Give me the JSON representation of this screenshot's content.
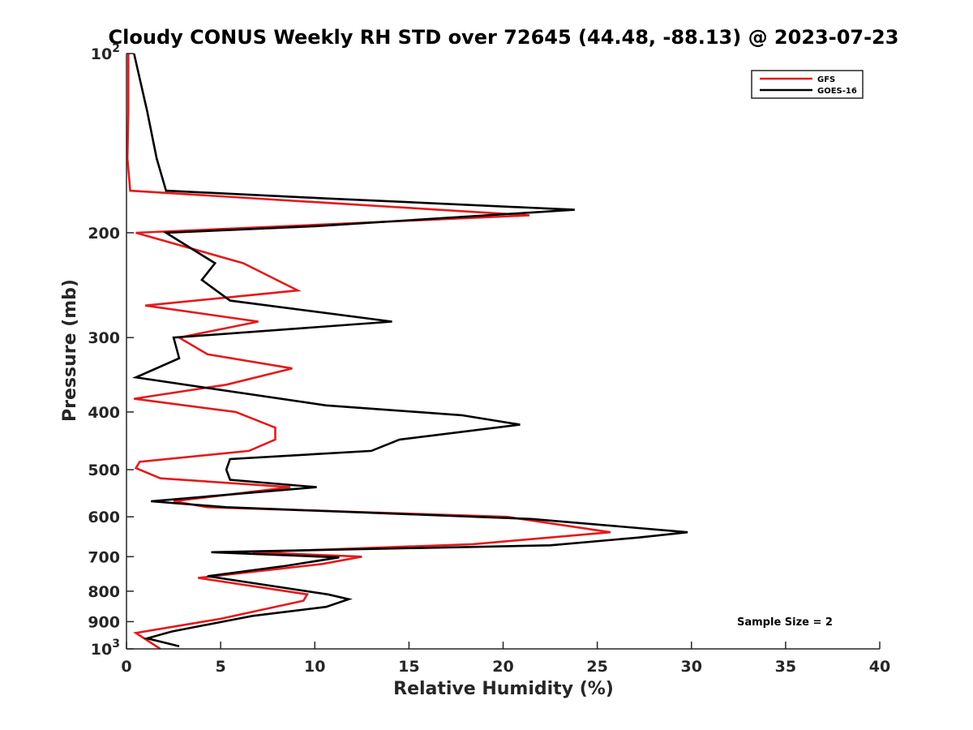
{
  "chart_data": {
    "type": "line",
    "title": "Cloudy CONUS Weekly RH STD over 72645 (44.48, -88.13) @ 2023-07-23",
    "xlabel": "Relative Humidity (%)",
    "ylabel": "Pressure (mb)",
    "xlim": [
      0,
      40
    ],
    "ylim": [
      100,
      1000
    ],
    "yscale": "log",
    "y_reversed": true,
    "grid": false,
    "legend_position": "top-right",
    "x_ticks": [
      {
        "value": 0,
        "label": "0"
      },
      {
        "value": 5,
        "label": "5"
      },
      {
        "value": 10,
        "label": "10"
      },
      {
        "value": 15,
        "label": "15"
      },
      {
        "value": 20,
        "label": "20"
      },
      {
        "value": 25,
        "label": "25"
      },
      {
        "value": 30,
        "label": "30"
      },
      {
        "value": 35,
        "label": "35"
      },
      {
        "value": 40,
        "label": "40"
      }
    ],
    "y_ticks": [
      {
        "value": 200,
        "label": "200"
      },
      {
        "value": 300,
        "label": "300"
      },
      {
        "value": 400,
        "label": "400"
      },
      {
        "value": 500,
        "label": "500"
      },
      {
        "value": 600,
        "label": "600"
      },
      {
        "value": 700,
        "label": "700"
      },
      {
        "value": 800,
        "label": "800"
      },
      {
        "value": 900,
        "label": "900"
      }
    ],
    "y_ticks_sci": [
      {
        "value": 100,
        "base": "10",
        "exp": "2"
      },
      {
        "value": 1000,
        "base": "10",
        "exp": "3"
      }
    ],
    "series": [
      {
        "name": "GFS",
        "color": "#e41a1c",
        "points": [
          [
            0.1,
            100
          ],
          [
            0.1,
            125
          ],
          [
            0.05,
            150
          ],
          [
            0.2,
            170
          ],
          [
            21.4,
            187
          ],
          [
            0.5,
            200
          ],
          [
            6.2,
            225
          ],
          [
            9.1,
            250
          ],
          [
            1.0,
            265
          ],
          [
            7.0,
            282
          ],
          [
            2.8,
            300
          ],
          [
            4.3,
            320
          ],
          [
            8.8,
            338
          ],
          [
            5.3,
            360
          ],
          [
            0.4,
            380
          ],
          [
            5.8,
            400
          ],
          [
            7.9,
            425
          ],
          [
            7.9,
            445
          ],
          [
            6.5,
            465
          ],
          [
            0.7,
            485
          ],
          [
            0.5,
            497
          ],
          [
            1.8,
            517
          ],
          [
            8.7,
            535
          ],
          [
            2.5,
            565
          ],
          [
            4.3,
            578
          ],
          [
            20.2,
            600
          ],
          [
            25.7,
            637
          ],
          [
            18.4,
            667
          ],
          [
            6.7,
            688
          ],
          [
            12.5,
            700
          ],
          [
            10.4,
            720
          ],
          [
            3.8,
            760
          ],
          [
            9.6,
            810
          ],
          [
            9.4,
            830
          ],
          [
            5.0,
            890
          ],
          [
            0.5,
            940
          ],
          [
            1.8,
            1000
          ]
        ]
      },
      {
        "name": "GOES-16",
        "color": "#000000",
        "points": [
          [
            0.4,
            100
          ],
          [
            1.1,
            125
          ],
          [
            1.6,
            150
          ],
          [
            2.1,
            170
          ],
          [
            10.4,
            175
          ],
          [
            23.8,
            183
          ],
          [
            10.0,
            195
          ],
          [
            2.1,
            200
          ],
          [
            4.7,
            225
          ],
          [
            4.0,
            240
          ],
          [
            5.5,
            260
          ],
          [
            14.1,
            282
          ],
          [
            2.5,
            300
          ],
          [
            2.8,
            325
          ],
          [
            0.5,
            350
          ],
          [
            10.6,
            390
          ],
          [
            17.8,
            405
          ],
          [
            20.9,
            420
          ],
          [
            14.5,
            445
          ],
          [
            13.0,
            465
          ],
          [
            5.5,
            480
          ],
          [
            5.3,
            500
          ],
          [
            5.5,
            520
          ],
          [
            10.1,
            535
          ],
          [
            1.3,
            565
          ],
          [
            5.3,
            578
          ],
          [
            21.5,
            605
          ],
          [
            29.8,
            637
          ],
          [
            27.2,
            650
          ],
          [
            22.5,
            670
          ],
          [
            4.5,
            688
          ],
          [
            11.3,
            702
          ],
          [
            8.5,
            725
          ],
          [
            4.3,
            755
          ],
          [
            10.7,
            810
          ],
          [
            11.8,
            825
          ],
          [
            10.6,
            850
          ],
          [
            6.7,
            880
          ],
          [
            2.4,
            935
          ],
          [
            1.1,
            960
          ],
          [
            2.8,
            990
          ]
        ]
      }
    ],
    "annotation": "Sample Size = 2"
  }
}
